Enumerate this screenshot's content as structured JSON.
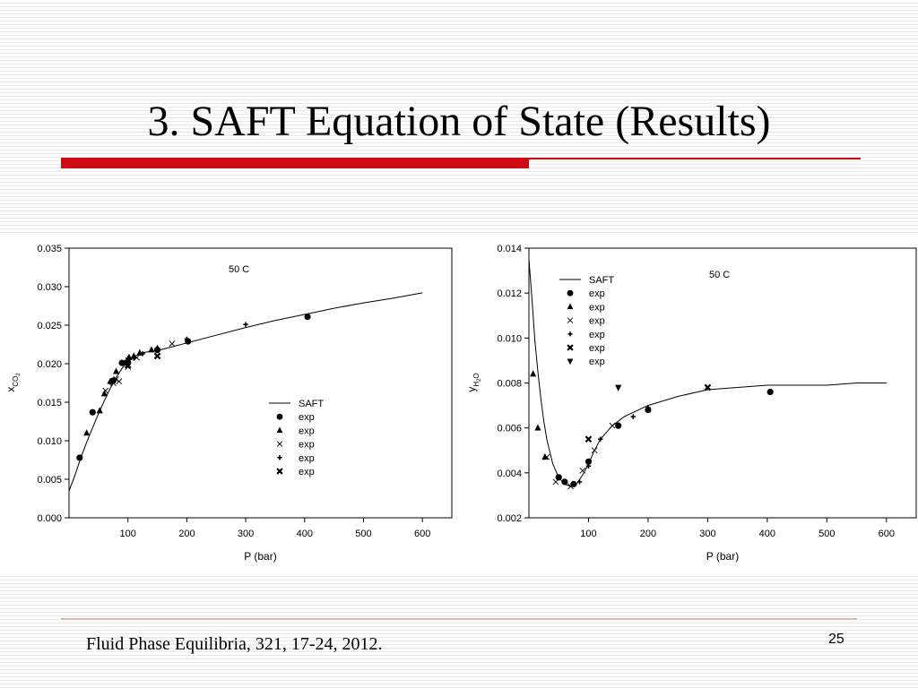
{
  "slide": {
    "title": "3. SAFT Equation of State (Results)",
    "citation": "Fluid Phase Equilibria, 321, 17-24, 2012.",
    "page_number": "25",
    "accent_color": "#cc0a14"
  },
  "chart_data": [
    {
      "type": "scatter",
      "annotation": "50 C",
      "xlabel": "P (bar)",
      "ylabel": "x",
      "ylabel_sub": "CO",
      "ylabel_subsub": "2",
      "xlim": [
        0,
        650
      ],
      "ylim": [
        0,
        0.035
      ],
      "xticks": [
        100,
        200,
        300,
        400,
        500,
        600
      ],
      "yticks": [
        0.0,
        0.005,
        0.01,
        0.015,
        0.02,
        0.025,
        0.03,
        0.035
      ],
      "ytick_labels": [
        "0.000",
        "0.005",
        "0.010",
        "0.015",
        "0.020",
        "0.025",
        "0.030",
        "0.035"
      ],
      "legend_position": "center-right",
      "legend": [
        {
          "label": "SAFT",
          "marker": "line"
        },
        {
          "label": "exp",
          "marker": "circle"
        },
        {
          "label": "exp",
          "marker": "triangle-up"
        },
        {
          "label": "exp",
          "marker": "x-thin"
        },
        {
          "label": "exp",
          "marker": "plus"
        },
        {
          "label": "exp",
          "marker": "x-bold"
        }
      ],
      "line": {
        "name": "SAFT",
        "x": [
          0,
          10,
          20,
          30,
          40,
          50,
          60,
          70,
          80,
          90,
          100,
          110,
          120,
          130,
          140,
          150,
          175,
          200,
          250,
          300,
          350,
          400,
          450,
          500,
          550,
          600
        ],
        "y": [
          0.0035,
          0.0055,
          0.0078,
          0.0098,
          0.0117,
          0.0135,
          0.0152,
          0.0168,
          0.0182,
          0.0194,
          0.0203,
          0.0209,
          0.0213,
          0.0215,
          0.0216,
          0.0217,
          0.0222,
          0.0227,
          0.0237,
          0.0247,
          0.0256,
          0.0264,
          0.0272,
          0.0279,
          0.0285,
          0.0292
        ]
      },
      "series": [
        {
          "marker": "circle",
          "x": [
            18,
            40,
            75,
            90,
            100,
            150,
            202,
            405
          ],
          "y": [
            0.0078,
            0.0137,
            0.0178,
            0.0201,
            0.0202,
            0.0218,
            0.0229,
            0.0261
          ]
        },
        {
          "marker": "triangle-up",
          "x": [
            30,
            52,
            60,
            70,
            80,
            95,
            102,
            110,
            120,
            140,
            150
          ],
          "y": [
            0.011,
            0.0139,
            0.0161,
            0.0177,
            0.019,
            0.0201,
            0.0208,
            0.021,
            0.0214,
            0.0218,
            0.022
          ]
        },
        {
          "marker": "x-thin",
          "x": [
            62,
            75,
            80,
            85,
            100,
            115,
            175
          ],
          "y": [
            0.0165,
            0.0175,
            0.018,
            0.0177,
            0.0196,
            0.0208,
            0.0226
          ]
        },
        {
          "marker": "plus",
          "x": [
            70,
            100,
            110,
            125,
            150,
            200,
            300
          ],
          "y": [
            0.0176,
            0.0207,
            0.0207,
            0.0213,
            0.022,
            0.0232,
            0.0251
          ]
        },
        {
          "marker": "x-bold",
          "x": [
            100,
            150
          ],
          "y": [
            0.0198,
            0.021
          ]
        }
      ]
    },
    {
      "type": "scatter",
      "annotation": "50 C",
      "xlabel": "P (bar)",
      "ylabel": "y",
      "ylabel_sub": "H",
      "ylabel_subsub": "2",
      "ylabel_tail": "O",
      "xlim": [
        0,
        650
      ],
      "ylim": [
        0.002,
        0.014
      ],
      "xticks": [
        100,
        200,
        300,
        400,
        500,
        600
      ],
      "yticks": [
        0.002,
        0.004,
        0.006,
        0.008,
        0.01,
        0.012,
        0.014
      ],
      "ytick_labels": [
        "0.002",
        "0.004",
        "0.006",
        "0.008",
        "0.010",
        "0.012",
        "0.014"
      ],
      "legend_position": "top-left",
      "legend": [
        {
          "label": "SAFT",
          "marker": "line"
        },
        {
          "label": "exp",
          "marker": "circle"
        },
        {
          "label": "exp",
          "marker": "triangle-up"
        },
        {
          "label": "exp",
          "marker": "x-thin"
        },
        {
          "label": "exp",
          "marker": "plus"
        },
        {
          "label": "exp",
          "marker": "x-bold"
        },
        {
          "label": "exp",
          "marker": "triangle-down"
        }
      ],
      "line": {
        "name": "SAFT",
        "x": [
          0,
          5,
          10,
          15,
          20,
          25,
          30,
          40,
          50,
          60,
          70,
          80,
          90,
          100,
          110,
          120,
          140,
          160,
          200,
          250,
          300,
          350,
          400,
          450,
          500,
          550,
          600
        ],
        "y": [
          0.0135,
          0.0118,
          0.0099,
          0.0085,
          0.0073,
          0.0063,
          0.0055,
          0.0044,
          0.0038,
          0.0035,
          0.0034,
          0.0035,
          0.0039,
          0.0044,
          0.005,
          0.0055,
          0.0061,
          0.0065,
          0.007,
          0.0074,
          0.0077,
          0.0078,
          0.0079,
          0.0079,
          0.0079,
          0.008,
          0.008
        ]
      },
      "series": [
        {
          "marker": "circle",
          "x": [
            50,
            60,
            75,
            100,
            150,
            200,
            405
          ],
          "y": [
            0.0038,
            0.0036,
            0.0035,
            0.0045,
            0.0061,
            0.0068,
            0.0076
          ]
        },
        {
          "marker": "triangle-up",
          "x": [
            7,
            15,
            27
          ],
          "y": [
            0.0084,
            0.006,
            0.0047
          ]
        },
        {
          "marker": "x-thin",
          "x": [
            30,
            45,
            70,
            90,
            110,
            140
          ],
          "y": [
            0.0047,
            0.0036,
            0.0034,
            0.0041,
            0.005,
            0.0061
          ]
        },
        {
          "marker": "plus",
          "x": [
            60,
            85,
            100,
            120,
            175,
            200
          ],
          "y": [
            0.0036,
            0.0036,
            0.0043,
            0.0055,
            0.0065,
            0.0069
          ]
        },
        {
          "marker": "x-bold",
          "x": [
            100,
            300
          ],
          "y": [
            0.0055,
            0.0078
          ]
        },
        {
          "marker": "triangle-down",
          "x": [
            150
          ],
          "y": [
            0.0078
          ]
        }
      ]
    }
  ]
}
